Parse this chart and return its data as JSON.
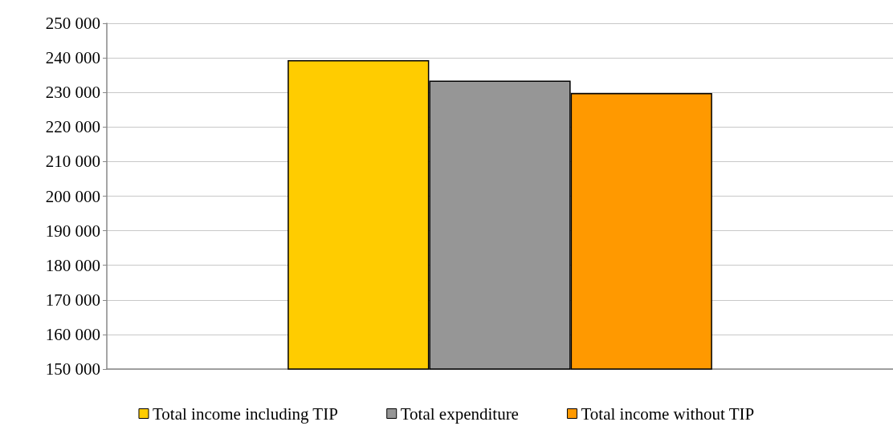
{
  "chart_data": {
    "type": "bar",
    "categories": [
      null
    ],
    "series": [
      {
        "name": "Total income including TIP",
        "color": "#ffcc00",
        "values": [
          239300
        ]
      },
      {
        "name": "Total expenditure",
        "color": "#969696",
        "values": [
          233400
        ]
      },
      {
        "name": "Total income without TIP",
        "color": "#ff9900",
        "values": [
          229800
        ]
      }
    ],
    "ylim": [
      150000,
      250000
    ],
    "yticks": [
      {
        "value": 150000,
        "label": "150 000"
      },
      {
        "value": 160000,
        "label": "160 000"
      },
      {
        "value": 170000,
        "label": "170 000"
      },
      {
        "value": 180000,
        "label": "180 000"
      },
      {
        "value": 190000,
        "label": "190 000"
      },
      {
        "value": 200000,
        "label": "200 000"
      },
      {
        "value": 210000,
        "label": "210 000"
      },
      {
        "value": 220000,
        "label": "220 000"
      },
      {
        "value": 230000,
        "label": "230 000"
      },
      {
        "value": 240000,
        "label": "240 000"
      },
      {
        "value": 250000,
        "label": "250 000"
      }
    ],
    "grid": "y",
    "legend": "bottom"
  }
}
